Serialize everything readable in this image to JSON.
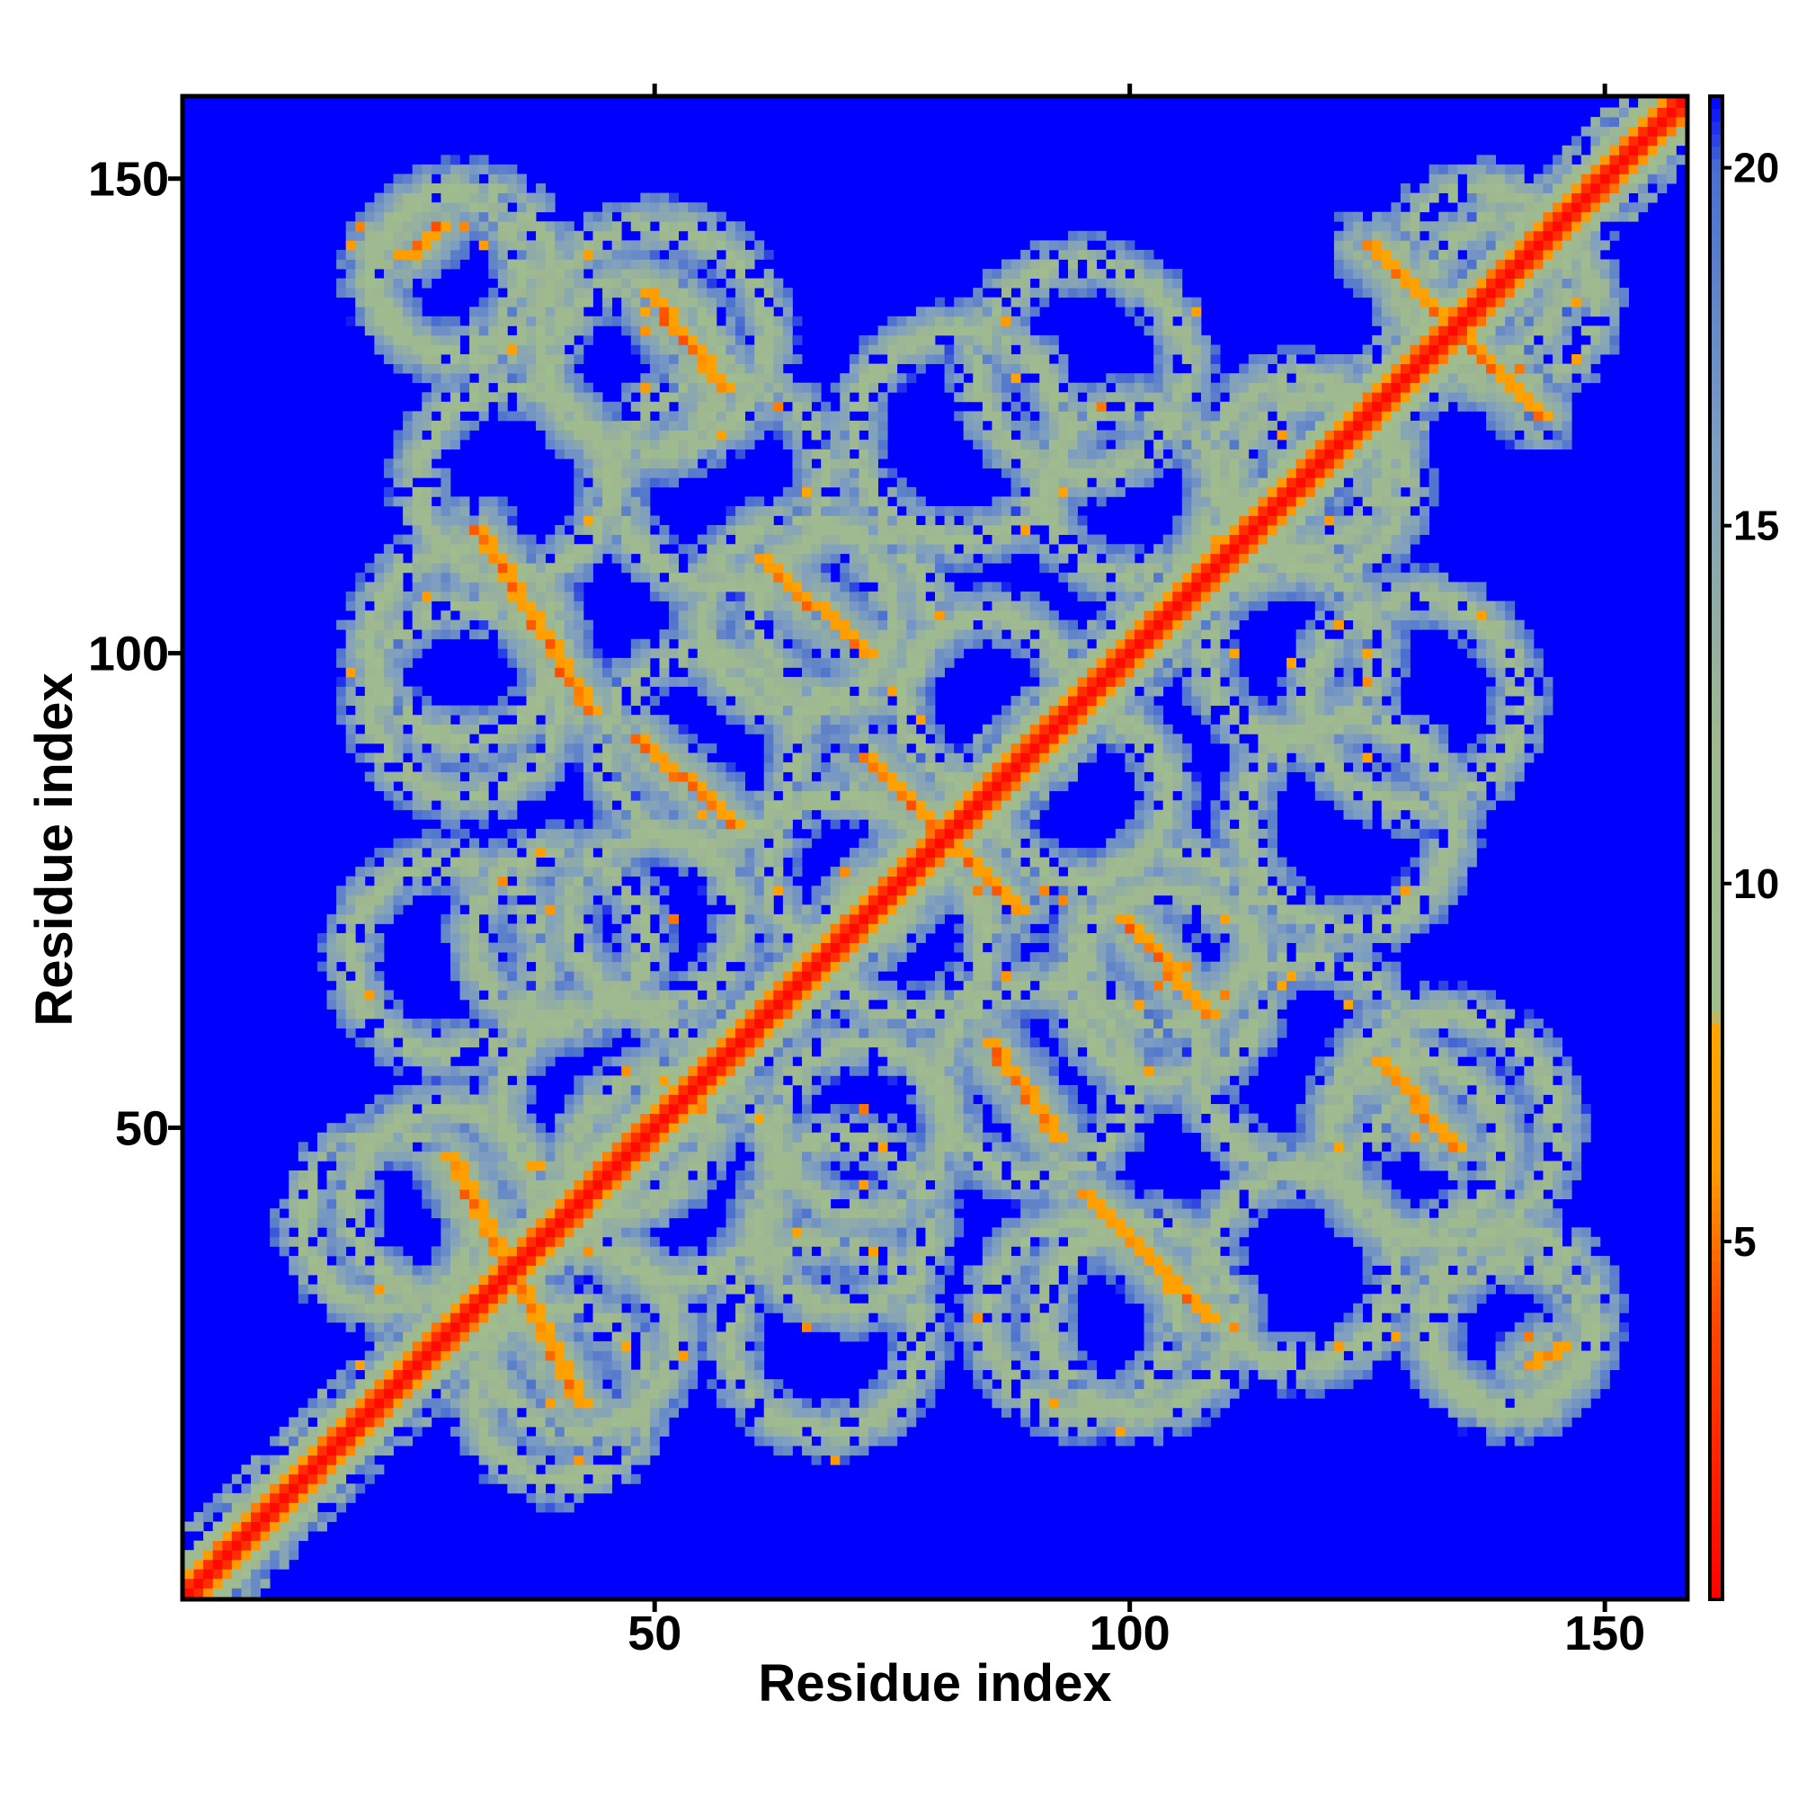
{
  "chart_data": {
    "type": "heatmap",
    "title": "",
    "xlabel": "Residue index",
    "ylabel": "Residue index",
    "n_residues": 158,
    "xlim": [
      1,
      158
    ],
    "ylim": [
      1,
      158
    ],
    "x_ticks": [
      50,
      100,
      150
    ],
    "y_ticks": [
      50,
      100,
      150
    ],
    "x_tick_labels": [
      "50",
      "100",
      "150"
    ],
    "y_tick_labels": [
      "50",
      "100",
      "150"
    ],
    "colorbar": {
      "ticks": [
        5,
        10,
        15,
        20
      ],
      "tick_labels": [
        "5",
        "10",
        "15",
        "20"
      ],
      "range": [
        0,
        21
      ],
      "stops": [
        {
          "value": 0,
          "color": "#ff0000"
        },
        {
          "value": 4,
          "color": "#ff4a00"
        },
        {
          "value": 6,
          "color": "#ff9a00"
        },
        {
          "value": 8,
          "color": "#ffa500"
        },
        {
          "value": 8.2,
          "color": "#9fbf8f"
        },
        {
          "value": 12,
          "color": "#9fb890"
        },
        {
          "value": 16,
          "color": "#7f9fc0"
        },
        {
          "value": 20,
          "color": "#4a6fd0"
        },
        {
          "value": 21,
          "color": "#0000ff"
        }
      ]
    },
    "background_color": "#0000ff",
    "diagonal_band": {
      "color_core": "#ff0000",
      "color_edge": "#ff7a00",
      "halo": "#9fbf8f"
    },
    "contact_segments": [
      {
        "kind": "anti",
        "from": [
          28,
          47
        ],
        "to": [
          42,
          21
        ],
        "value": 6
      },
      {
        "kind": "anti",
        "from": [
          31,
          113
        ],
        "to": [
          43,
          94
        ],
        "value": 6
      },
      {
        "kind": "anti",
        "from": [
          48,
          91
        ],
        "to": [
          58,
          82
        ],
        "value": 6
      },
      {
        "kind": "anti",
        "from": [
          49,
          138
        ],
        "to": [
          57,
          128
        ],
        "value": 6
      },
      {
        "kind": "anti",
        "from": [
          61,
          110
        ],
        "to": [
          72,
          100
        ],
        "value": 6
      },
      {
        "kind": "anti",
        "from": [
          72,
          89
        ],
        "to": [
          88,
          73
        ],
        "value": 6
      },
      {
        "kind": "anti",
        "from": [
          85,
          59
        ],
        "to": [
          92,
          49
        ],
        "value": 6
      },
      {
        "kind": "anti",
        "from": [
          95,
          43
        ],
        "to": [
          108,
          30
        ],
        "value": 6
      },
      {
        "kind": "anti",
        "from": [
          99,
          72
        ],
        "to": [
          108,
          62
        ],
        "value": 6
      },
      {
        "kind": "anti",
        "from": [
          126,
          57
        ],
        "to": [
          134,
          48
        ],
        "value": 6
      },
      {
        "kind": "anti",
        "from": [
          125,
          143
        ],
        "to": [
          143,
          125
        ],
        "value": 6
      },
      {
        "kind": "point",
        "from": [
          24,
          142
        ],
        "to": [
          27,
          145
        ],
        "value": 6
      },
      {
        "kind": "point",
        "from": [
          142,
          25
        ],
        "to": [
          145,
          27
        ],
        "value": 6
      }
    ],
    "halo_regions": [
      {
        "cx": 30,
        "cy": 101,
        "r": 10
      },
      {
        "cx": 30,
        "cy": 140,
        "r": 9
      },
      {
        "cx": 50,
        "cy": 133,
        "r": 12
      },
      {
        "cx": 65,
        "cy": 104,
        "r": 10
      },
      {
        "cx": 82,
        "cy": 123,
        "r": 11
      },
      {
        "cx": 85,
        "cy": 95,
        "r": 9
      },
      {
        "cx": 50,
        "cy": 72,
        "r": 9
      },
      {
        "cx": 70,
        "cy": 77,
        "r": 8
      },
      {
        "cx": 28,
        "cy": 68,
        "r": 10
      },
      {
        "cx": 28,
        "cy": 42,
        "r": 10
      },
      {
        "cx": 52,
        "cy": 45,
        "r": 11
      },
      {
        "cx": 70,
        "cy": 40,
        "r": 9
      },
      {
        "cx": 40,
        "cy": 22,
        "r": 9
      },
      {
        "cx": 90,
        "cy": 55,
        "r": 10
      },
      {
        "cx": 95,
        "cy": 30,
        "r": 10
      },
      {
        "cx": 104,
        "cy": 70,
        "r": 9
      },
      {
        "cx": 118,
        "cy": 57,
        "r": 11
      },
      {
        "cx": 118,
        "cy": 35,
        "r": 10
      },
      {
        "cx": 130,
        "cy": 48,
        "r": 9
      },
      {
        "cx": 130,
        "cy": 95,
        "r": 11
      },
      {
        "cx": 118,
        "cy": 120,
        "r": 9
      },
      {
        "cx": 140,
        "cy": 137,
        "r": 9
      },
      {
        "cx": 140,
        "cy": 28,
        "r": 8
      },
      {
        "cx": 100,
        "cy": 117,
        "r": 9
      }
    ]
  }
}
